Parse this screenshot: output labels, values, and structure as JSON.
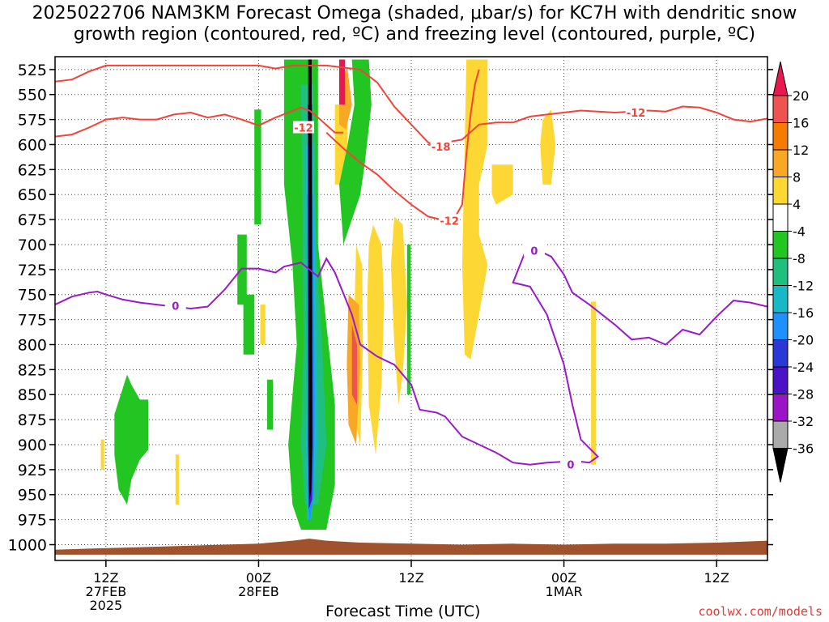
{
  "title": {
    "line1": "2025022706 NAM3KM Forecast Omega (shaded, μbar/s) for KC7H with dendritic snow",
    "line2": "growth region (contoured, red, ºC) and freezing level (contoured, purple, ºC)"
  },
  "credit": "coolwx.com/models",
  "chart_data": {
    "type": "heatmap",
    "xlabel": "Forecast Time (UTC)",
    "ylabel": "",
    "x_range_hours": [
      0,
      84
    ],
    "y_range_mb": [
      1000,
      515
    ],
    "y_ticks": [
      525,
      550,
      575,
      600,
      625,
      650,
      675,
      700,
      725,
      750,
      775,
      800,
      825,
      850,
      875,
      900,
      925,
      950,
      975,
      1000
    ],
    "x_ticks": [
      {
        "hour": 6,
        "label": "12Z",
        "sub1": "27FEB",
        "sub2": "2025"
      },
      {
        "hour": 24,
        "label": "00Z",
        "sub1": "28FEB",
        "sub2": ""
      },
      {
        "hour": 42,
        "label": "12Z",
        "sub1": "",
        "sub2": ""
      },
      {
        "hour": 60,
        "label": "00Z",
        "sub1": "1MAR",
        "sub2": ""
      },
      {
        "hour": 78,
        "label": "12Z",
        "sub1": "",
        "sub2": ""
      }
    ],
    "colorbar": {
      "labels": [
        "20",
        "16",
        "12",
        "8",
        "4",
        "-4",
        "-8",
        "-12",
        "-16",
        "-20",
        "-24",
        "-28",
        "-32",
        "-36"
      ],
      "colors": [
        "#e8174f",
        "#ef5350",
        "#f57c00",
        "#f9a825",
        "#fdd835",
        "#ffffff",
        "#22c522",
        "#1fbf7f",
        "#17b9c6",
        "#1e90ff",
        "#2a39d6",
        "#4b12c7",
        "#9b14c8",
        "#aaaaaa",
        "#000000"
      ]
    },
    "colors": {
      "red_contour": "#f44336",
      "purple_contour": "#9c18c9",
      "terrain": "#a0522d"
    },
    "dendritic_contours": [
      {
        "label": "-12",
        "points": [
          [
            0,
            592
          ],
          [
            2,
            590
          ],
          [
            4,
            583
          ],
          [
            6,
            575
          ],
          [
            8,
            573
          ],
          [
            10,
            575
          ],
          [
            12,
            575
          ],
          [
            14,
            570
          ],
          [
            16,
            568
          ],
          [
            18,
            573
          ],
          [
            20,
            570
          ],
          [
            22,
            575
          ],
          [
            24,
            581
          ],
          [
            26,
            573
          ],
          [
            27.5,
            568
          ],
          [
            29,
            563
          ],
          [
            30,
            566
          ],
          [
            31,
            573
          ],
          [
            33,
            588
          ],
          [
            34,
            588
          ]
        ]
      },
      {
        "label": "-12",
        "points": [
          [
            0,
            537
          ],
          [
            2,
            535
          ],
          [
            4,
            527
          ],
          [
            6,
            521
          ],
          [
            10,
            521
          ],
          [
            14,
            521
          ],
          [
            18,
            521
          ],
          [
            22,
            521
          ],
          [
            24,
            521
          ],
          [
            26,
            524
          ],
          [
            28,
            521
          ],
          [
            32,
            521
          ],
          [
            36,
            525
          ],
          [
            38,
            538
          ],
          [
            40,
            562
          ],
          [
            42,
            580
          ],
          [
            44,
            598
          ],
          [
            45,
            601
          ],
          [
            46,
            598
          ],
          [
            48,
            595
          ],
          [
            50,
            580
          ],
          [
            52,
            578
          ],
          [
            54,
            578
          ],
          [
            56,
            572
          ],
          [
            58,
            570
          ],
          [
            62,
            566
          ],
          [
            66,
            568
          ],
          [
            70,
            566
          ],
          [
            72,
            567
          ],
          [
            74,
            562
          ],
          [
            76,
            563
          ],
          [
            78,
            568
          ],
          [
            80,
            575
          ],
          [
            82,
            577
          ],
          [
            84,
            574
          ]
        ]
      },
      {
        "label": "-18",
        "points": [
          [
            44,
            600
          ],
          [
            45.5,
            602
          ]
        ]
      },
      {
        "label": "-12",
        "points": [
          [
            32,
            588
          ],
          [
            34,
            604
          ],
          [
            36,
            618
          ],
          [
            38,
            630
          ],
          [
            40,
            646
          ],
          [
            42,
            660
          ],
          [
            44,
            672
          ],
          [
            46,
            676
          ],
          [
            47,
            675
          ],
          [
            48,
            660
          ],
          [
            48.5,
            610
          ],
          [
            49,
            570
          ],
          [
            49.5,
            540
          ],
          [
            50,
            525
          ]
        ]
      }
    ],
    "freezing_level_contours": [
      {
        "label": "0",
        "points": [
          [
            0,
            760
          ],
          [
            2,
            752
          ],
          [
            4,
            748
          ],
          [
            5,
            747
          ],
          [
            6,
            750
          ],
          [
            8,
            755
          ],
          [
            10,
            758
          ],
          [
            12,
            760
          ],
          [
            14,
            762
          ],
          [
            16,
            764
          ],
          [
            18,
            762
          ],
          [
            20,
            745
          ],
          [
            22,
            724
          ],
          [
            24,
            724
          ],
          [
            26,
            728
          ],
          [
            27,
            722
          ],
          [
            29,
            718
          ],
          [
            31,
            732
          ],
          [
            32,
            714
          ],
          [
            33,
            728
          ],
          [
            35,
            770
          ],
          [
            36,
            800
          ],
          [
            38,
            812
          ],
          [
            40,
            820
          ],
          [
            42,
            840
          ],
          [
            43,
            865
          ],
          [
            45,
            868
          ],
          [
            46,
            872
          ],
          [
            48,
            892
          ],
          [
            50,
            900
          ],
          [
            52,
            908
          ],
          [
            54,
            918
          ],
          [
            56,
            920
          ],
          [
            58,
            918
          ],
          [
            60,
            917
          ],
          [
            62,
            917
          ],
          [
            63,
            918
          ],
          [
            64,
            912
          ],
          [
            62,
            895
          ],
          [
            61,
            860
          ],
          [
            60,
            820
          ],
          [
            58,
            770
          ],
          [
            56,
            742
          ],
          [
            54,
            738
          ],
          [
            55.5,
            706
          ],
          [
            57,
            706
          ],
          [
            58.5,
            712
          ],
          [
            60,
            730
          ],
          [
            61,
            748
          ],
          [
            63,
            760
          ],
          [
            66,
            780
          ],
          [
            68,
            795
          ],
          [
            70,
            793
          ],
          [
            72,
            800
          ],
          [
            74,
            785
          ],
          [
            76,
            790
          ],
          [
            78,
            772
          ],
          [
            80,
            756
          ],
          [
            82,
            758
          ],
          [
            84,
            762
          ]
        ]
      }
    ]
  }
}
